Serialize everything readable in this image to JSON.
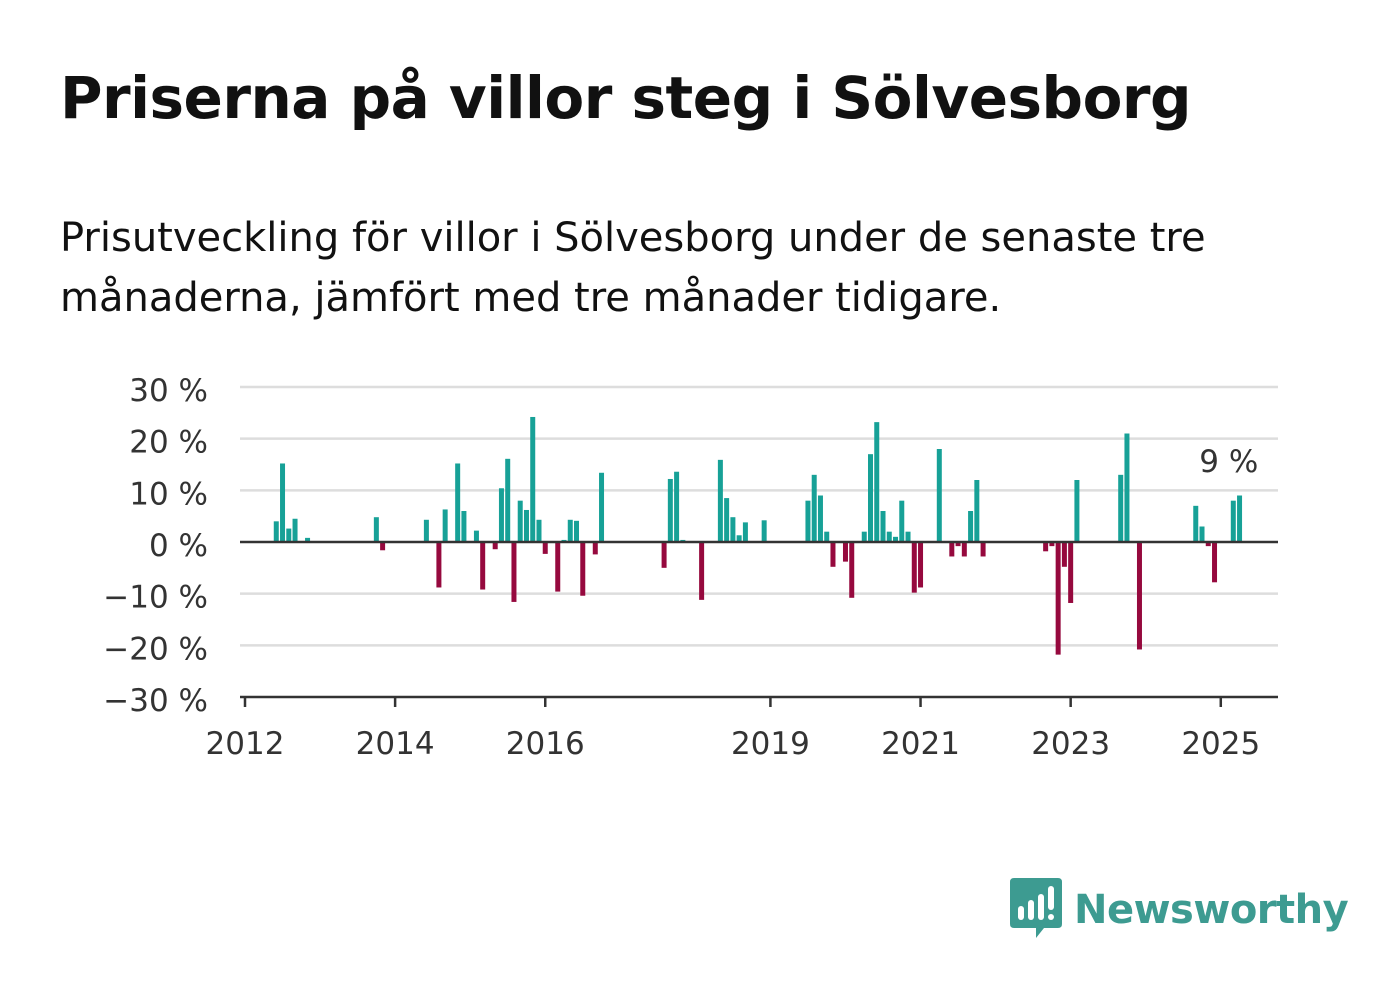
{
  "title": "Priserna på villor steg i Sölvesborg",
  "subtitle": "Prisutveckling för villor i Sölvesborg under de senaste tre månaderna, jämfört med tre månader tidigare.",
  "brand": {
    "name": "Newsworthy",
    "icon": "bar-chart-speech-bubble-icon",
    "color": "#3d9b91"
  },
  "colors": {
    "positive": "#17a197",
    "negative": "#96093e",
    "grid": "#dddddd",
    "axis": "#333333"
  },
  "chart_data": {
    "type": "bar",
    "ylim": [
      -30,
      30
    ],
    "yticks": [
      {
        "value": 30,
        "label": "30 %"
      },
      {
        "value": 20,
        "label": "20 %"
      },
      {
        "value": 10,
        "label": "10 %"
      },
      {
        "value": 0,
        "label": "0 %"
      },
      {
        "value": -10,
        "label": "−10 %"
      },
      {
        "value": -20,
        "label": "−20 %"
      },
      {
        "value": -30,
        "label": "−30 %"
      }
    ],
    "xlim": [
      "2012-01",
      "2025-09"
    ],
    "xticks": [
      {
        "date": "2012-01",
        "label": "2012"
      },
      {
        "date": "2014-01",
        "label": "2014"
      },
      {
        "date": "2016-01",
        "label": "2016"
      },
      {
        "date": "2019-01",
        "label": "2019"
      },
      {
        "date": "2021-01",
        "label": "2021"
      },
      {
        "date": "2023-01",
        "label": "2023"
      },
      {
        "date": "2025-01",
        "label": "2025"
      }
    ],
    "grid": true,
    "annotation": {
      "label": "9 %",
      "date": "2025-01"
    },
    "series": [
      {
        "values": [
          [
            "2012-06",
            4
          ],
          [
            "2012-07",
            15.2
          ],
          [
            "2012-08",
            2.6
          ],
          [
            "2012-09",
            4.5
          ],
          [
            "2012-11",
            0.8
          ],
          [
            "2013-10",
            4.8
          ],
          [
            "2013-11",
            -1.6
          ],
          [
            "2014-06",
            4.3
          ],
          [
            "2014-08",
            -8.8
          ],
          [
            "2014-09",
            6.3
          ],
          [
            "2014-11",
            15.2
          ],
          [
            "2014-12",
            6
          ],
          [
            "2015-02",
            2.2
          ],
          [
            "2015-03",
            -9.2
          ],
          [
            "2015-05",
            -1.4
          ],
          [
            "2015-06",
            10.4
          ],
          [
            "2015-07",
            16.1
          ],
          [
            "2015-08",
            -11.6
          ],
          [
            "2015-09",
            8
          ],
          [
            "2015-10",
            6.2
          ],
          [
            "2015-11",
            24.2
          ],
          [
            "2015-12",
            4.3
          ],
          [
            "2016-01",
            -2.3
          ],
          [
            "2016-03",
            -9.6
          ],
          [
            "2016-04",
            0.4
          ],
          [
            "2016-05",
            4.3
          ],
          [
            "2016-06",
            4.1
          ],
          [
            "2016-07",
            -10.4
          ],
          [
            "2016-09",
            -2.4
          ],
          [
            "2016-10",
            13.4
          ],
          [
            "2017-08",
            -5
          ],
          [
            "2017-09",
            12.2
          ],
          [
            "2017-10",
            13.6
          ],
          [
            "2017-11",
            0.4
          ],
          [
            "2018-02",
            -11.2
          ],
          [
            "2018-05",
            15.9
          ],
          [
            "2018-06",
            8.5
          ],
          [
            "2018-07",
            4.8
          ],
          [
            "2018-08",
            1.3
          ],
          [
            "2018-09",
            3.8
          ],
          [
            "2018-12",
            4.2
          ],
          [
            "2019-07",
            8
          ],
          [
            "2019-08",
            13
          ],
          [
            "2019-09",
            9
          ],
          [
            "2019-10",
            2
          ],
          [
            "2019-11",
            -4.8
          ],
          [
            "2020-01",
            -3.8
          ],
          [
            "2020-02",
            -10.8
          ],
          [
            "2020-04",
            2
          ],
          [
            "2020-05",
            17
          ],
          [
            "2020-06",
            23.2
          ],
          [
            "2020-07",
            6
          ],
          [
            "2020-08",
            2
          ],
          [
            "2020-09",
            1
          ],
          [
            "2020-10",
            8
          ],
          [
            "2020-11",
            2
          ],
          [
            "2020-12",
            -9.8
          ],
          [
            "2021-01",
            -8.8
          ],
          [
            "2021-04",
            18
          ],
          [
            "2021-06",
            -2.8
          ],
          [
            "2021-07",
            -0.8
          ],
          [
            "2021-08",
            -2.8
          ],
          [
            "2021-09",
            6
          ],
          [
            "2021-10",
            12
          ],
          [
            "2021-11",
            -2.8
          ],
          [
            "2022-09",
            -1.8
          ],
          [
            "2022-10",
            -0.8
          ],
          [
            "2022-11",
            -21.8
          ],
          [
            "2022-12",
            -4.8
          ],
          [
            "2023-01",
            -11.8
          ],
          [
            "2023-02",
            12
          ],
          [
            "2023-09",
            13
          ],
          [
            "2023-10",
            21
          ],
          [
            "2023-12",
            -20.8
          ],
          [
            "2024-09",
            7
          ],
          [
            "2024-10",
            3
          ],
          [
            "2024-11",
            -0.8
          ],
          [
            "2024-12",
            -7.8
          ],
          [
            "2025-03",
            8
          ],
          [
            "2025-04",
            9
          ]
        ]
      }
    ]
  }
}
